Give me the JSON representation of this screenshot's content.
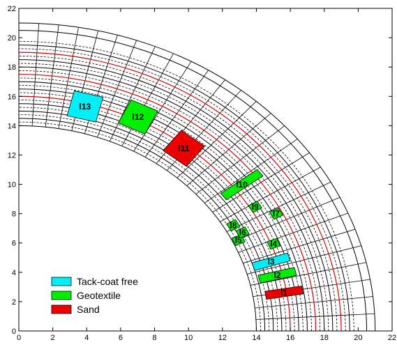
{
  "chart_data": {
    "type": "diagram",
    "title": "",
    "xlabel": "",
    "ylabel": "",
    "xlim": [
      0,
      22
    ],
    "ylim": [
      0,
      22
    ],
    "xticks": [
      "0",
      "2",
      "4",
      "6",
      "8",
      "10",
      "12",
      "14",
      "16",
      "18",
      "20",
      "22"
    ],
    "yticks": [
      "0",
      "2",
      "4",
      "6",
      "8",
      "10",
      "12",
      "14",
      "16",
      "18",
      "20",
      "22"
    ],
    "rings": {
      "solid_black": [
        14,
        14.5,
        15,
        15.5,
        16.5,
        17,
        18,
        18.5,
        19.5,
        20.5,
        21
      ],
      "dashed_black": [
        14.25,
        14.75,
        15.25,
        15.75,
        16.25,
        16.75,
        17.25,
        17.75,
        18.25,
        18.75,
        19.25,
        19.75
      ],
      "red": [
        16,
        17.5,
        19
      ],
      "red_color": "#d40000"
    },
    "radial_spokes_count": 28,
    "zones": [
      {
        "label": "l1",
        "material": "Sand",
        "radius": 15.85,
        "angle": 9.5,
        "width": 2.2,
        "height": 0.55
      },
      {
        "label": "l2",
        "material": "Geotextile",
        "radius": 15.7,
        "angle": 14.0,
        "width": 2.2,
        "height": 0.55
      },
      {
        "label": "l3",
        "material": "Tack-coat free",
        "radius": 15.6,
        "angle": 17.6,
        "width": 2.2,
        "height": 0.55
      },
      {
        "label": "l4",
        "material": "Geotextile",
        "radius": 16.15,
        "angle": 21.6,
        "width": 0.6,
        "height": 0.55
      },
      {
        "label": "l5",
        "material": "Geotextile",
        "radius": 14.35,
        "angle": 25.6,
        "width": 0.6,
        "height": 0.55
      },
      {
        "label": "l6",
        "material": "Geotextile",
        "radius": 14.8,
        "angle": 27.0,
        "width": 0.6,
        "height": 0.55
      },
      {
        "label": "l7",
        "material": "Geotextile",
        "radius": 17.15,
        "angle": 27.8,
        "width": 0.6,
        "height": 0.55
      },
      {
        "label": "l8",
        "material": "Geotextile",
        "radius": 14.55,
        "angle": 29.7,
        "width": 0.6,
        "height": 0.55
      },
      {
        "label": "l9",
        "material": "Geotextile",
        "radius": 16.3,
        "angle": 31.3,
        "width": 0.6,
        "height": 0.55
      },
      {
        "label": "l10",
        "material": "Geotextile",
        "radius": 16.5,
        "angle": 37.2,
        "width": 2.7,
        "height": 0.55
      },
      {
        "label": "l11",
        "material": "Sand",
        "radius": 15.8,
        "angle": 52.0,
        "width": 1.75,
        "height": 1.75
      },
      {
        "label": "l12",
        "material": "Geotextile",
        "radius": 16.2,
        "angle": 64.3,
        "width": 1.75,
        "height": 1.75
      },
      {
        "label": "l13",
        "material": "Tack-coat free",
        "radius": 15.8,
        "angle": 75.7,
        "width": 1.75,
        "height": 1.75
      }
    ],
    "legend": {
      "placement": "bottom-left",
      "entries": [
        {
          "label": "Tack-coat free",
          "color": "#00f0f8"
        },
        {
          "label": "Geotextile",
          "color": "#00ee00"
        },
        {
          "label": "Sand",
          "color": "#ee0000"
        }
      ]
    }
  }
}
